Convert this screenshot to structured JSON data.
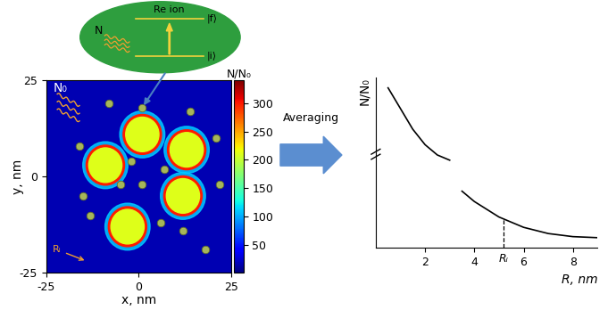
{
  "bubble": {
    "photon_label": "N",
    "ion_label": "Re ion",
    "upper_state": "|f⟩",
    "lower_state": "|i⟩"
  },
  "field_map": {
    "incident_label": "N₀",
    "xlabel": "x, nm",
    "ylabel": "y, nm",
    "xlim": [
      -25,
      25
    ],
    "ylim": [
      -25,
      25
    ],
    "xticks": [
      -25,
      0,
      25
    ],
    "yticks": [
      -25,
      0,
      25
    ],
    "colorbar": {
      "label": "N/N₀",
      "range": [
        0,
        340
      ],
      "ticks": [
        50,
        100,
        150,
        200,
        250,
        300
      ]
    },
    "field_levels": {
      "background": 15,
      "halo": 110,
      "rim": 300,
      "core": 210
    },
    "particles": [
      {
        "x": -9,
        "y": 3,
        "r": 4.5
      },
      {
        "x": 1,
        "y": 11,
        "r": 4.5
      },
      {
        "x": 13,
        "y": 7,
        "r": 4.5
      },
      {
        "x": 12,
        "y": -5,
        "r": 4.5
      },
      {
        "x": -3,
        "y": -13,
        "r": 4.5
      }
    ],
    "ions": {
      "x": [
        1,
        -16,
        -15,
        -5,
        1,
        7,
        14,
        21,
        22,
        -13,
        6,
        12,
        -8,
        -2,
        18
      ],
      "y": [
        18,
        8,
        -5,
        -2,
        -2,
        2,
        17,
        10,
        -2,
        -10,
        -12,
        -14,
        19,
        4,
        -19
      ]
    },
    "radius_label": "Rᵢ"
  },
  "arrow_label": "Averaging",
  "chart_data": {
    "type": "line",
    "xlabel": "R, nm",
    "ylabel": "N/N₀",
    "x": [
      0.5,
      1,
      1.5,
      2,
      2.5,
      3,
      3.25,
      3.5,
      4,
      4.5,
      5,
      6,
      7,
      8,
      9
    ],
    "values": [
      310,
      270,
      230,
      200,
      180,
      170,
      null,
      110,
      90,
      75,
      60,
      40,
      28,
      22,
      20
    ],
    "xlim": [
      0,
      9
    ],
    "ylim": [
      0,
      330
    ],
    "xticks": [
      2,
      4,
      6,
      8
    ],
    "tick_labels": "x",
    "color": "#000000",
    "annotations": [
      {
        "x": 5.2,
        "text": "Rᵢ"
      }
    ]
  }
}
